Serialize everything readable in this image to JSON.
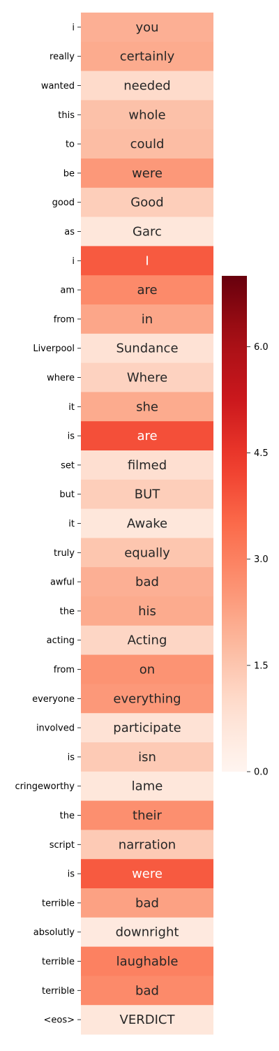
{
  "chart_data": {
    "type": "heatmap",
    "title": "",
    "xlabel": "",
    "ylabel": "",
    "colormap": "Reds",
    "vmin": 0,
    "vmax": 7.0,
    "colorbar_ticks": [
      "0.0",
      "1.5",
      "3.0",
      "4.5",
      "6.0"
    ],
    "colorbar_tick_values": [
      0.0,
      1.5,
      3.0,
      4.5,
      6.0
    ],
    "rows": [
      {
        "label": "i",
        "token": "you",
        "value": 2.0
      },
      {
        "label": "really",
        "token": "certainly",
        "value": 2.1
      },
      {
        "label": "wanted",
        "token": "needed",
        "value": 1.0
      },
      {
        "label": "this",
        "token": "whole",
        "value": 1.6
      },
      {
        "label": "to",
        "token": "could",
        "value": 1.7
      },
      {
        "label": "be",
        "token": "were",
        "value": 2.5
      },
      {
        "label": "good",
        "token": "Good",
        "value": 1.3
      },
      {
        "label": "as",
        "token": "Garc",
        "value": 0.6
      },
      {
        "label": "i",
        "token": "I",
        "value": 3.8
      },
      {
        "label": "am",
        "token": "are",
        "value": 2.8
      },
      {
        "label": "from",
        "token": "in",
        "value": 2.2
      },
      {
        "label": "Liverpool",
        "token": "Sundance",
        "value": 0.8
      },
      {
        "label": "where",
        "token": "Where",
        "value": 1.2
      },
      {
        "label": "it",
        "token": "she",
        "value": 2.1
      },
      {
        "label": "is",
        "token": "are",
        "value": 4.0
      },
      {
        "label": "set",
        "token": "filmed",
        "value": 0.9
      },
      {
        "label": "but",
        "token": "BUT",
        "value": 1.3
      },
      {
        "label": "it",
        "token": "Awake",
        "value": 0.6
      },
      {
        "label": "truly",
        "token": "equally",
        "value": 1.5
      },
      {
        "label": "awful",
        "token": "bad",
        "value": 2.0
      },
      {
        "label": "the",
        "token": "his",
        "value": 2.1
      },
      {
        "label": "acting",
        "token": "Acting",
        "value": 1.1
      },
      {
        "label": "from",
        "token": "on",
        "value": 2.6
      },
      {
        "label": "everyone",
        "token": "everything",
        "value": 2.5
      },
      {
        "label": "involved",
        "token": "participate",
        "value": 0.8
      },
      {
        "label": "is",
        "token": "isn",
        "value": 1.4
      },
      {
        "label": "cringeworthy",
        "token": "lame",
        "value": 0.6
      },
      {
        "label": "the",
        "token": "their",
        "value": 2.7
      },
      {
        "label": "script",
        "token": "narration",
        "value": 1.4
      },
      {
        "label": "is",
        "token": "were",
        "value": 3.8
      },
      {
        "label": "terrible",
        "token": "bad",
        "value": 2.3
      },
      {
        "label": "absolutly",
        "token": "downright",
        "value": 0.5
      },
      {
        "label": "terrible",
        "token": "laughable",
        "value": 3.0
      },
      {
        "label": "terrible",
        "token": "bad",
        "value": 2.8
      },
      {
        "label": "<eos>",
        "token": "VERDICT",
        "value": 0.6
      }
    ]
  }
}
